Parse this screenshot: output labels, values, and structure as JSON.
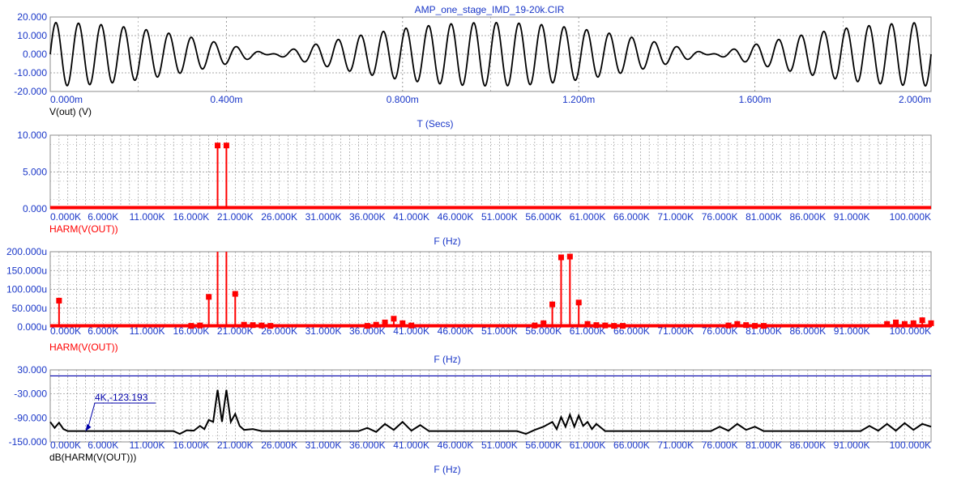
{
  "window_title": "AMP_one_stage_IMD_19-20k.CIR",
  "colors": {
    "title": "#1a37c8",
    "axis_text": "#1a37c8",
    "trace_black": "#000000",
    "trace_red": "#ff0000",
    "grid": "#8c8c8c",
    "cursor_blue": "#0000aa",
    "label_black": "#000000",
    "label_red": "#ff0000"
  },
  "chart_data": [
    {
      "type": "line",
      "title": "AMP_one_stage_IMD_19-20k.CIR",
      "ylabel": "V(out) (V)",
      "xlabel": "T (Secs)",
      "xlim": [
        0,
        2.0
      ],
      "ylim": [
        -20,
        20
      ],
      "x_ticks": [
        "0.000m",
        "0.400m",
        "0.800m",
        "1.200m",
        "1.600m",
        "2.000m"
      ],
      "y_ticks": [
        "20.000",
        "10.000",
        "0.000",
        "-10.000",
        "-20.000"
      ],
      "signal": {
        "tone1_hz": 19000,
        "tone2_hz": 20000,
        "amplitude_each": 8.5,
        "series_name": "V(out) (V)"
      }
    },
    {
      "type": "bar",
      "ylabel": "HARM(V(OUT))",
      "xlabel": "F (Hz)",
      "xlim": [
        0,
        100
      ],
      "ylim": [
        0,
        10
      ],
      "x_ticks": [
        "0.000K",
        "6.000K",
        "11.000K",
        "16.000K",
        "21.000K",
        "26.000K",
        "31.000K",
        "36.000K",
        "41.000K",
        "46.000K",
        "51.000K",
        "56.000K",
        "61.000K",
        "66.000K",
        "71.000K",
        "76.000K",
        "81.000K",
        "86.000K",
        "91.000K",
        "100.000K"
      ],
      "y_ticks": [
        "10.000",
        "5.000",
        "0.000"
      ],
      "x": [
        19,
        20
      ],
      "values": [
        8.6,
        8.6
      ]
    },
    {
      "type": "bar",
      "ylabel": "HARM(V(OUT))",
      "xlabel": "F (Hz)",
      "xlim": [
        0,
        100
      ],
      "ylim": [
        0,
        200
      ],
      "unit": "u",
      "x_ticks": [
        "0.000K",
        "6.000K",
        "11.000K",
        "16.000K",
        "21.000K",
        "26.000K",
        "31.000K",
        "36.000K",
        "41.000K",
        "46.000K",
        "51.000K",
        "56.000K",
        "61.000K",
        "66.000K",
        "71.000K",
        "76.000K",
        "81.000K",
        "86.000K",
        "91.000K",
        "100.000K"
      ],
      "y_ticks": [
        "200.000u",
        "150.000u",
        "100.000u",
        "50.000u",
        "0.000u"
      ],
      "x": [
        1,
        16,
        17,
        18,
        19,
        20,
        21,
        22,
        23,
        24,
        25,
        36,
        37,
        38,
        39,
        40,
        41,
        55,
        56,
        57,
        58,
        59,
        60,
        61,
        62,
        63,
        64,
        65,
        77,
        78,
        79,
        80,
        81,
        95,
        96,
        97,
        98,
        99,
        100
      ],
      "values": [
        70,
        3,
        4,
        80,
        200,
        200,
        88,
        6,
        5,
        4,
        3,
        3,
        6,
        12,
        22,
        10,
        4,
        4,
        10,
        60,
        185,
        187,
        65,
        8,
        5,
        4,
        3,
        3,
        4,
        8,
        5,
        3,
        3,
        8,
        12,
        8,
        10,
        18,
        10
      ]
    },
    {
      "type": "line",
      "ylabel": "dB(HARM(V(OUT)))",
      "xlabel": "F (Hz)",
      "xlim": [
        0,
        100
      ],
      "ylim": [
        -150,
        30
      ],
      "x_ticks": [
        "0.000K",
        "6.000K",
        "11.000K",
        "16.000K",
        "21.000K",
        "26.000K",
        "31.000K",
        "36.000K",
        "41.000K",
        "46.000K",
        "51.000K",
        "56.000K",
        "61.000K",
        "66.000K",
        "71.000K",
        "76.000K",
        "81.000K",
        "86.000K",
        "91.000K",
        "100.000K"
      ],
      "y_ticks": [
        "30.000",
        "-30.000",
        "-90.000",
        "-150.000"
      ],
      "reference_line_db": 15,
      "cursor": {
        "x": 4,
        "y": -123.193,
        "label": "4K,-123.193"
      },
      "x": [
        0,
        0.5,
        1,
        1.5,
        2,
        4,
        6,
        10,
        14,
        14.7,
        15.5,
        16.3,
        17,
        17.5,
        18,
        18.5,
        19,
        19.5,
        20,
        20.5,
        21,
        21.5,
        22,
        23,
        24,
        25,
        30,
        35,
        36,
        37,
        38,
        39,
        40,
        41,
        42,
        43,
        48,
        53,
        54,
        55,
        56,
        57,
        57.5,
        58,
        58.5,
        59,
        59.5,
        60,
        60.5,
        61,
        61.5,
        62,
        63,
        64,
        70,
        75,
        76,
        77,
        78,
        79,
        80,
        81,
        85,
        92,
        93,
        94,
        95,
        96,
        97,
        98,
        99,
        100
      ],
      "values": [
        -100,
        -115,
        -102,
        -118,
        -123,
        -123,
        -123,
        -123,
        -123,
        -130,
        -121,
        -122,
        -110,
        -118,
        -95,
        -100,
        -20,
        -100,
        -20,
        -100,
        -80,
        -110,
        -120,
        -118,
        -123,
        -123,
        -123,
        -123,
        -115,
        -125,
        -105,
        -120,
        -100,
        -122,
        -108,
        -123,
        -123,
        -123,
        -130,
        -120,
        -112,
        -100,
        -118,
        -88,
        -112,
        -82,
        -112,
        -84,
        -110,
        -100,
        -118,
        -105,
        -123,
        -123,
        -123,
        -123,
        -112,
        -122,
        -105,
        -120,
        -112,
        -123,
        -123,
        -123,
        -110,
        -122,
        -105,
        -122,
        -103,
        -120,
        -105,
        -112
      ]
    }
  ]
}
